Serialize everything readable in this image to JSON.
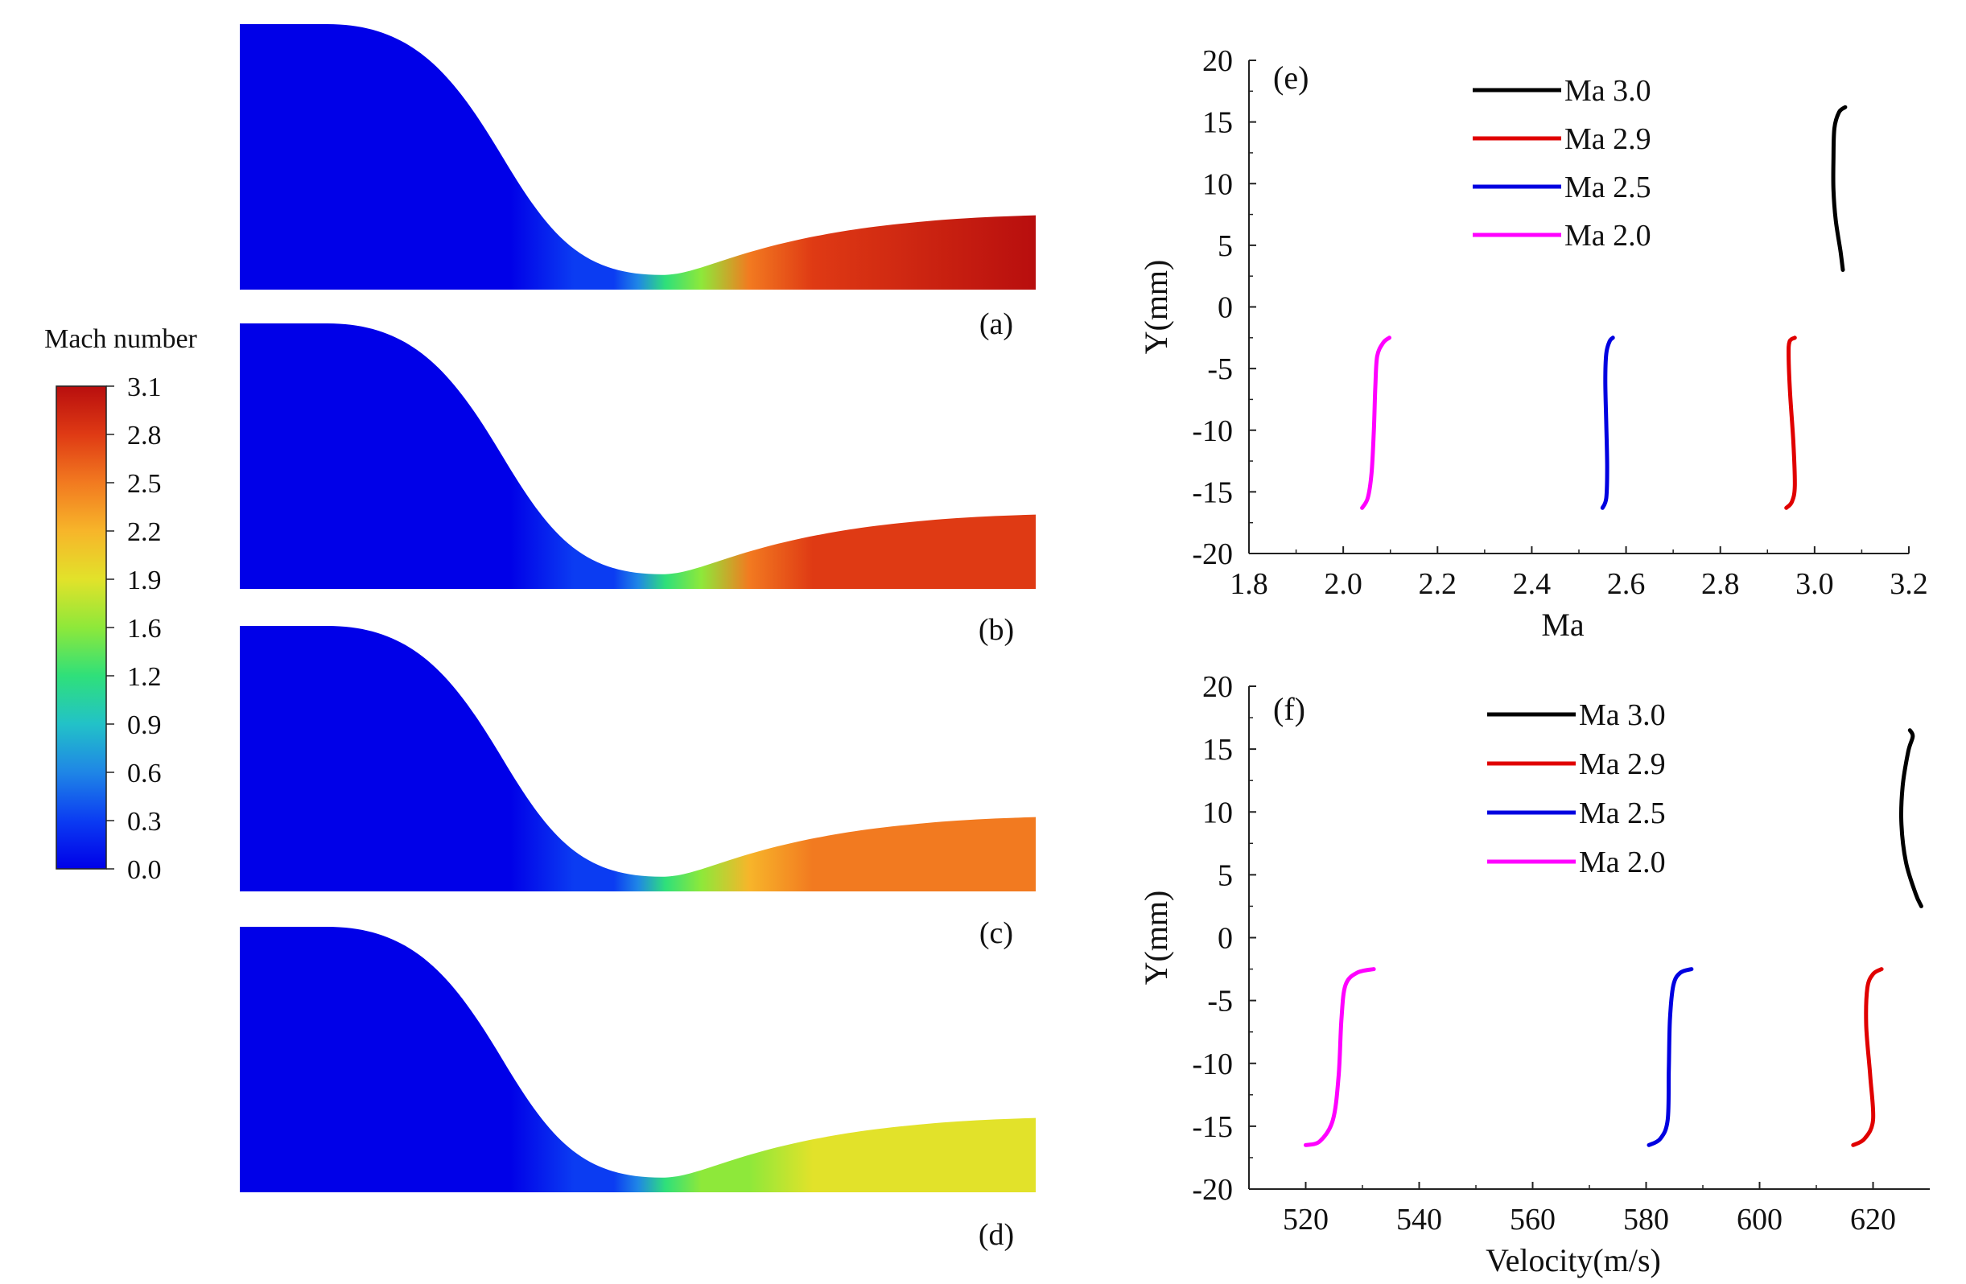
{
  "colorbar": {
    "title": "Mach number",
    "ticks": [
      "3.1",
      "2.8",
      "2.5",
      "2.2",
      "1.9",
      "1.6",
      "1.2",
      "0.9",
      "0.6",
      "0.3",
      "0.0"
    ],
    "colors": [
      "#0000e8",
      "#0b3cf2",
      "#1f86e6",
      "#22c2c8",
      "#2fe07a",
      "#8ee83a",
      "#e2e22a",
      "#f7b52a",
      "#f27a20",
      "#df3a14",
      "#b80e0e"
    ]
  },
  "contours": [
    {
      "label": "(a)",
      "exit_mach": 3.0,
      "throat_mach": 1.2
    },
    {
      "label": "(b)",
      "exit_mach": 2.9,
      "throat_mach": 1.2
    },
    {
      "label": "(c)",
      "exit_mach": 2.5,
      "throat_mach": 1.3
    },
    {
      "label": "(d)",
      "exit_mach": 2.0,
      "throat_mach": 1.2
    }
  ],
  "chart_data": [
    {
      "panel": "(e)",
      "type": "line",
      "xlabel": "Ma",
      "ylabel": "Y(mm)",
      "xlim": [
        1.8,
        3.2
      ],
      "ylim": [
        -20,
        20
      ],
      "xticks": [
        "1.8",
        "2.0",
        "2.2",
        "2.4",
        "2.6",
        "2.8",
        "3.0",
        "3.2"
      ],
      "yticks": [
        "20",
        "15",
        "10",
        "5",
        "0",
        "-5",
        "-10",
        "-15",
        "-20"
      ],
      "legend": "top-center",
      "series": [
        {
          "name": "Ma 3.0",
          "color": "#000000",
          "x": [
            3.06,
            3.055,
            3.045,
            3.04,
            3.04,
            3.042,
            3.052,
            3.065
          ],
          "y": [
            3.0,
            4.5,
            7.0,
            9.5,
            12.0,
            14.5,
            15.8,
            16.2
          ]
        },
        {
          "name": "Ma 2.9",
          "color": "#e00000",
          "x": [
            2.94,
            2.952,
            2.958,
            2.955,
            2.948,
            2.945,
            2.947,
            2.958
          ],
          "y": [
            -16.3,
            -15.8,
            -14.5,
            -11.0,
            -7.0,
            -4.0,
            -2.8,
            -2.5
          ]
        },
        {
          "name": "Ma 2.5",
          "color": "#0000e0",
          "x": [
            2.55,
            2.558,
            2.56,
            2.558,
            2.556,
            2.558,
            2.565,
            2.572
          ],
          "y": [
            -16.3,
            -15.5,
            -13.0,
            -9.5,
            -6.0,
            -3.8,
            -2.8,
            -2.5
          ]
        },
        {
          "name": "Ma 2.0",
          "color": "#ff00ff",
          "x": [
            2.04,
            2.052,
            2.06,
            2.065,
            2.068,
            2.072,
            2.085,
            2.098
          ],
          "y": [
            -16.3,
            -15.5,
            -13.5,
            -10.0,
            -6.5,
            -4.0,
            -2.9,
            -2.5
          ]
        }
      ]
    },
    {
      "panel": "(f)",
      "type": "line",
      "xlabel": "Velocity(m/s)",
      "ylabel": "Y(mm)",
      "xlim": [
        510,
        630
      ],
      "ylim": [
        -20,
        20
      ],
      "xticks": [
        "520",
        "540",
        "560",
        "580",
        "600",
        "620"
      ],
      "yticks": [
        "20",
        "15",
        "10",
        "5",
        "0",
        "-5",
        "-10",
        "-15",
        "-20"
      ],
      "legend": "top-center",
      "series": [
        {
          "name": "Ma 3.0",
          "color": "#000000",
          "x": [
            628.5,
            627.5,
            625.8,
            625.0,
            625.2,
            626.2,
            627.0,
            626.5
          ],
          "y": [
            2.5,
            3.5,
            6.0,
            9.0,
            12.0,
            14.8,
            16.0,
            16.5
          ]
        },
        {
          "name": "Ma 2.9",
          "color": "#e00000",
          "x": [
            616.5,
            618.5,
            620.0,
            619.5,
            618.8,
            619.0,
            620.0,
            621.5
          ],
          "y": [
            -16.5,
            -16.0,
            -14.5,
            -11.0,
            -7.0,
            -4.0,
            -2.9,
            -2.5
          ]
        },
        {
          "name": "Ma 2.5",
          "color": "#0000e0",
          "x": [
            580.5,
            582.5,
            583.8,
            584.0,
            584.2,
            584.8,
            586.0,
            588.0
          ],
          "y": [
            -16.5,
            -16.0,
            -14.5,
            -10.5,
            -6.5,
            -3.8,
            -2.8,
            -2.5
          ]
        },
        {
          "name": "Ma 2.0",
          "color": "#ff00ff",
          "x": [
            520.0,
            522.5,
            524.8,
            525.8,
            526.3,
            527.0,
            529.0,
            532.0
          ],
          "y": [
            -16.5,
            -16.2,
            -14.5,
            -11.0,
            -6.5,
            -3.8,
            -2.8,
            -2.5
          ]
        }
      ]
    }
  ]
}
